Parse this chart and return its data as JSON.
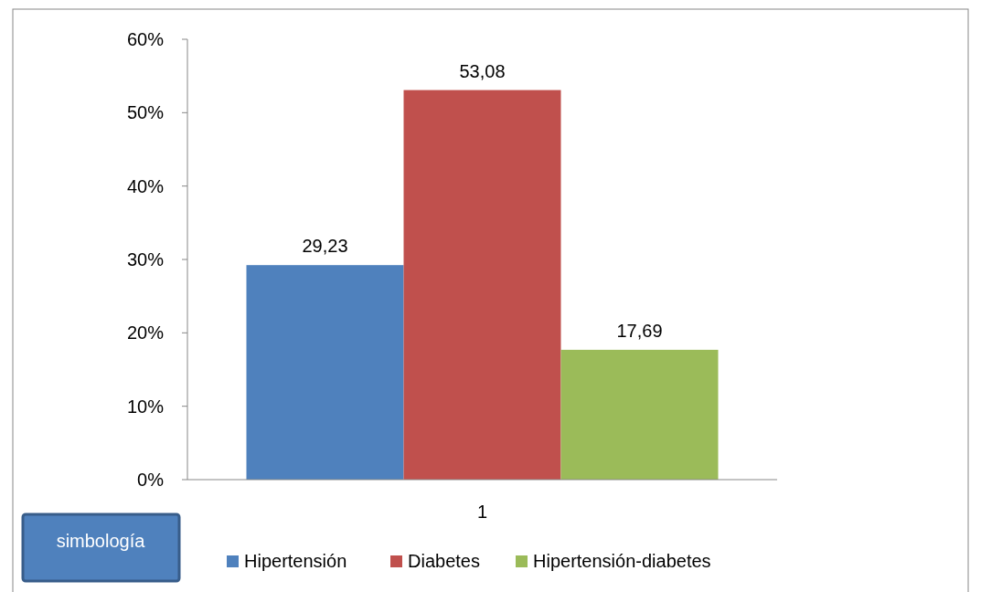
{
  "chart_data": {
    "type": "bar",
    "categories": [
      "1"
    ],
    "series": [
      {
        "name": "Hipertensión",
        "color": "#4f81bd",
        "values": [
          29.23
        ],
        "value_labels": [
          "29,23"
        ]
      },
      {
        "name": "Diabetes",
        "color": "#c0504d",
        "values": [
          53.08
        ],
        "value_labels": [
          "53,08"
        ]
      },
      {
        "name": "Hipertensión-diabetes",
        "color": "#9bbb59",
        "values": [
          17.69
        ],
        "value_labels": [
          "17,69"
        ]
      }
    ],
    "ylim": [
      0,
      60
    ],
    "yticks": [
      {
        "value": 0,
        "label": "0%"
      },
      {
        "value": 10,
        "label": "10%"
      },
      {
        "value": 20,
        "label": "20%"
      },
      {
        "value": 30,
        "label": "30%"
      },
      {
        "value": 40,
        "label": "40%"
      },
      {
        "value": 50,
        "label": "50%"
      },
      {
        "value": 60,
        "label": "60%"
      }
    ],
    "grid": false,
    "legend": "bottom",
    "annotations": [
      "simbología"
    ]
  }
}
